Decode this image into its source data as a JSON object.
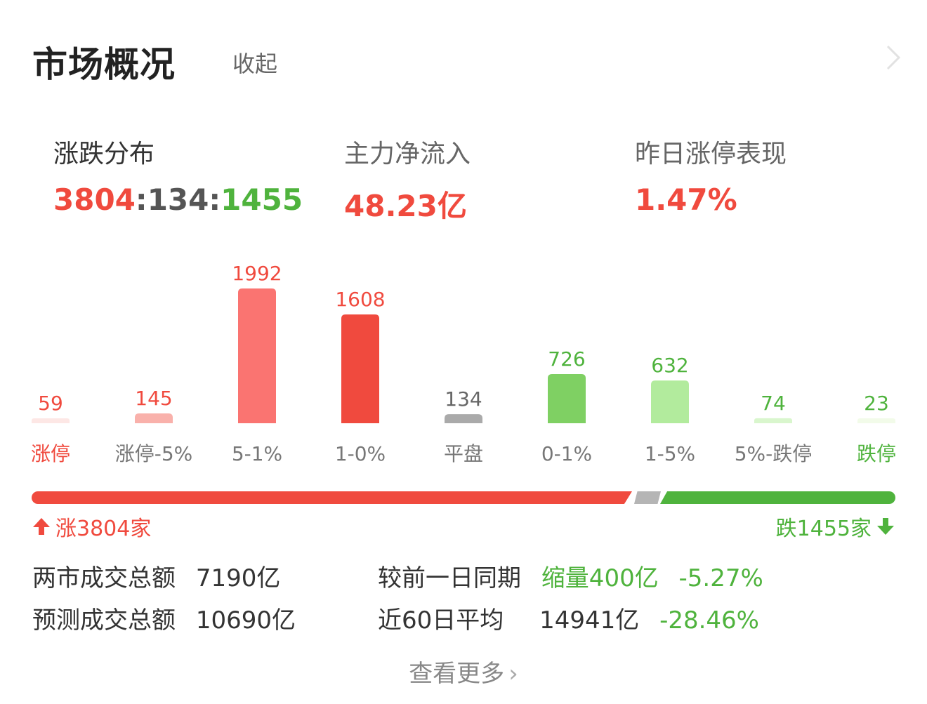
{
  "header": {
    "title": "市场概况",
    "collapse_label": "收起"
  },
  "stats": {
    "distribution": {
      "label": "涨跌分布",
      "up": "3804",
      "sep1": ":",
      "flat": "134",
      "sep2": ":",
      "down": "1455"
    },
    "main_inflow": {
      "label": "主力净流入",
      "value": "48.23亿"
    },
    "yesterday_limit": {
      "label": "昨日涨停表现",
      "value": "1.47%"
    }
  },
  "chart_data": {
    "type": "bar",
    "categories": [
      "涨停",
      "涨停-5%",
      "5-1%",
      "1-0%",
      "平盘",
      "0-1%",
      "1-5%",
      "5%-跌停",
      "跌停"
    ],
    "values": [
      59,
      145,
      1992,
      1608,
      134,
      726,
      632,
      74,
      23
    ],
    "colors": [
      "#fde7e5",
      "#f9b1ab",
      "#fa7471",
      "#f04a3e",
      "#aaaaaa",
      "#7fd063",
      "#b2eb9d",
      "#d9f6cd",
      "#f2fbe9"
    ],
    "label_colors": [
      "#f04a3e",
      "#f04a3e",
      "#f04a3e",
      "#f04a3e",
      "#666666",
      "#4fb33d",
      "#4fb33d",
      "#4fb33d",
      "#4fb33d"
    ],
    "category_colors": [
      "#f04a3e",
      "#777777",
      "#777777",
      "#777777",
      "#777777",
      "#777777",
      "#777777",
      "#777777",
      "#4fb33d"
    ]
  },
  "ratio_bar": {
    "up_label": "涨3804家",
    "down_label": "跌1455家",
    "up_icon": "arrow-up-icon",
    "down_icon": "arrow-down-icon"
  },
  "turnover": {
    "total_label": "两市成交总额",
    "total_value": "7190亿",
    "compare_label": "较前一日同期",
    "compare_value": "缩量400亿",
    "compare_pct": "-5.27%",
    "forecast_label": "预测成交总额",
    "forecast_value": "10690亿",
    "avg_label": "近60日平均",
    "avg_value": "14941亿",
    "avg_pct": "-28.46%"
  },
  "footer": {
    "more_label": "查看更多"
  },
  "colors": {
    "up": "#f04a3e",
    "down": "#4fb33d",
    "flat": "#aaaaaa"
  }
}
